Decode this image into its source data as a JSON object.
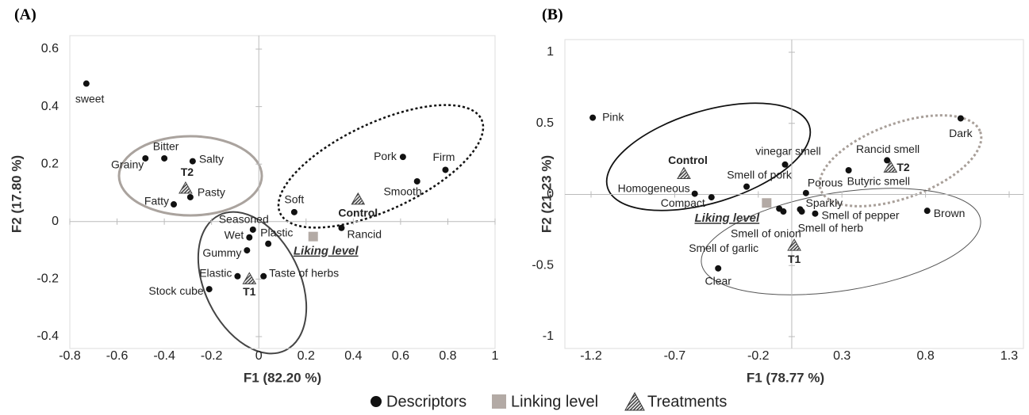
{
  "legend": [
    "Descriptors",
    "Linking level",
    "Treatments"
  ],
  "colors": {
    "descriptors": "#111111",
    "liking_level": "#b3aaa5",
    "treatments": "#444444"
  },
  "chart_data": [
    {
      "type": "scatter",
      "title": "(A)",
      "xlabel": "F1 (82.20 %)",
      "ylabel": "F2 (17.80 %)",
      "xlim": [
        -0.8,
        1
      ],
      "ylim": [
        -0.4,
        0.6
      ],
      "xticks": [
        -0.8,
        -0.6,
        -0.4,
        -0.2,
        0,
        0.2,
        0.4,
        0.6,
        0.8,
        1
      ],
      "yticks": [
        -0.4,
        -0.2,
        0,
        0.2,
        0.4,
        0.6
      ],
      "descriptors": {
        "labels": [
          "sweet",
          "Bitter",
          "Grainy",
          "Salty",
          "Pasty",
          "Fatty",
          "Soft",
          "Pork",
          "Firm",
          "Smooth",
          "Rancid",
          "Seasoned",
          "Wet",
          "Plastic",
          "Gummy",
          "Elastic",
          "Taste of herbs",
          "Stock cube"
        ],
        "x": [
          -0.73,
          -0.4,
          -0.48,
          -0.28,
          -0.29,
          -0.36,
          0.15,
          0.61,
          0.79,
          0.67,
          0.35,
          -0.025,
          -0.04,
          0.04,
          -0.05,
          -0.09,
          0.02,
          -0.21
        ],
        "y": [
          0.48,
          0.22,
          0.22,
          0.21,
          0.085,
          0.06,
          0.033,
          0.225,
          0.18,
          0.14,
          -0.022,
          -0.028,
          -0.055,
          -0.077,
          -0.1,
          -0.19,
          -0.19,
          -0.235
        ]
      },
      "liking_level": {
        "label": "Liking level",
        "x": 0.23,
        "y": -0.052
      },
      "treatments": {
        "labels": [
          "T2",
          "Control",
          "T1"
        ],
        "x": [
          -0.31,
          0.42,
          -0.04
        ],
        "y": [
          0.115,
          0.077,
          -0.2
        ]
      }
    },
    {
      "type": "scatter",
      "title": "(B)",
      "xlabel": "F1 (78.77 %)",
      "ylabel": "F2 (21.23 %)",
      "xlim": [
        -1.2,
        1.3
      ],
      "ylim": [
        -1,
        1
      ],
      "xticks": [
        -1.2,
        -0.7,
        -0.2,
        0.3,
        0.8,
        1.3
      ],
      "yticks": [
        -1,
        -0.5,
        0,
        0.5,
        1
      ],
      "descriptors": {
        "labels": [
          "Pink",
          "Homogeneous",
          "Compact",
          "Smell of pork",
          "vinegar smell",
          "Porous",
          "Sparkly",
          "Smell of pepper",
          "Smell of herb",
          "Smell of onion",
          "Smell of garlic",
          "Clear",
          "Butyric smell",
          "Rancid smell",
          "Dark",
          "Brown"
        ],
        "x": [
          -1.19,
          -0.58,
          -0.48,
          -0.27,
          -0.04,
          0.085,
          0.05,
          0.14,
          0.06,
          -0.05,
          -0.075,
          -0.44,
          0.34,
          0.57,
          1.01,
          0.81
        ],
        "y": [
          0.54,
          0.005,
          -0.02,
          0.055,
          0.21,
          0.01,
          -0.105,
          -0.135,
          -0.12,
          -0.12,
          -0.1,
          -0.52,
          0.17,
          0.24,
          0.535,
          -0.115
        ]
      },
      "liking_level": {
        "label": "Liking level",
        "x": -0.15,
        "y": -0.06
      },
      "treatments": {
        "labels": [
          "Control",
          "T2",
          "T1"
        ],
        "x": [
          -0.645,
          0.59,
          0.015
        ],
        "y": [
          0.145,
          0.19,
          -0.36
        ]
      }
    }
  ]
}
